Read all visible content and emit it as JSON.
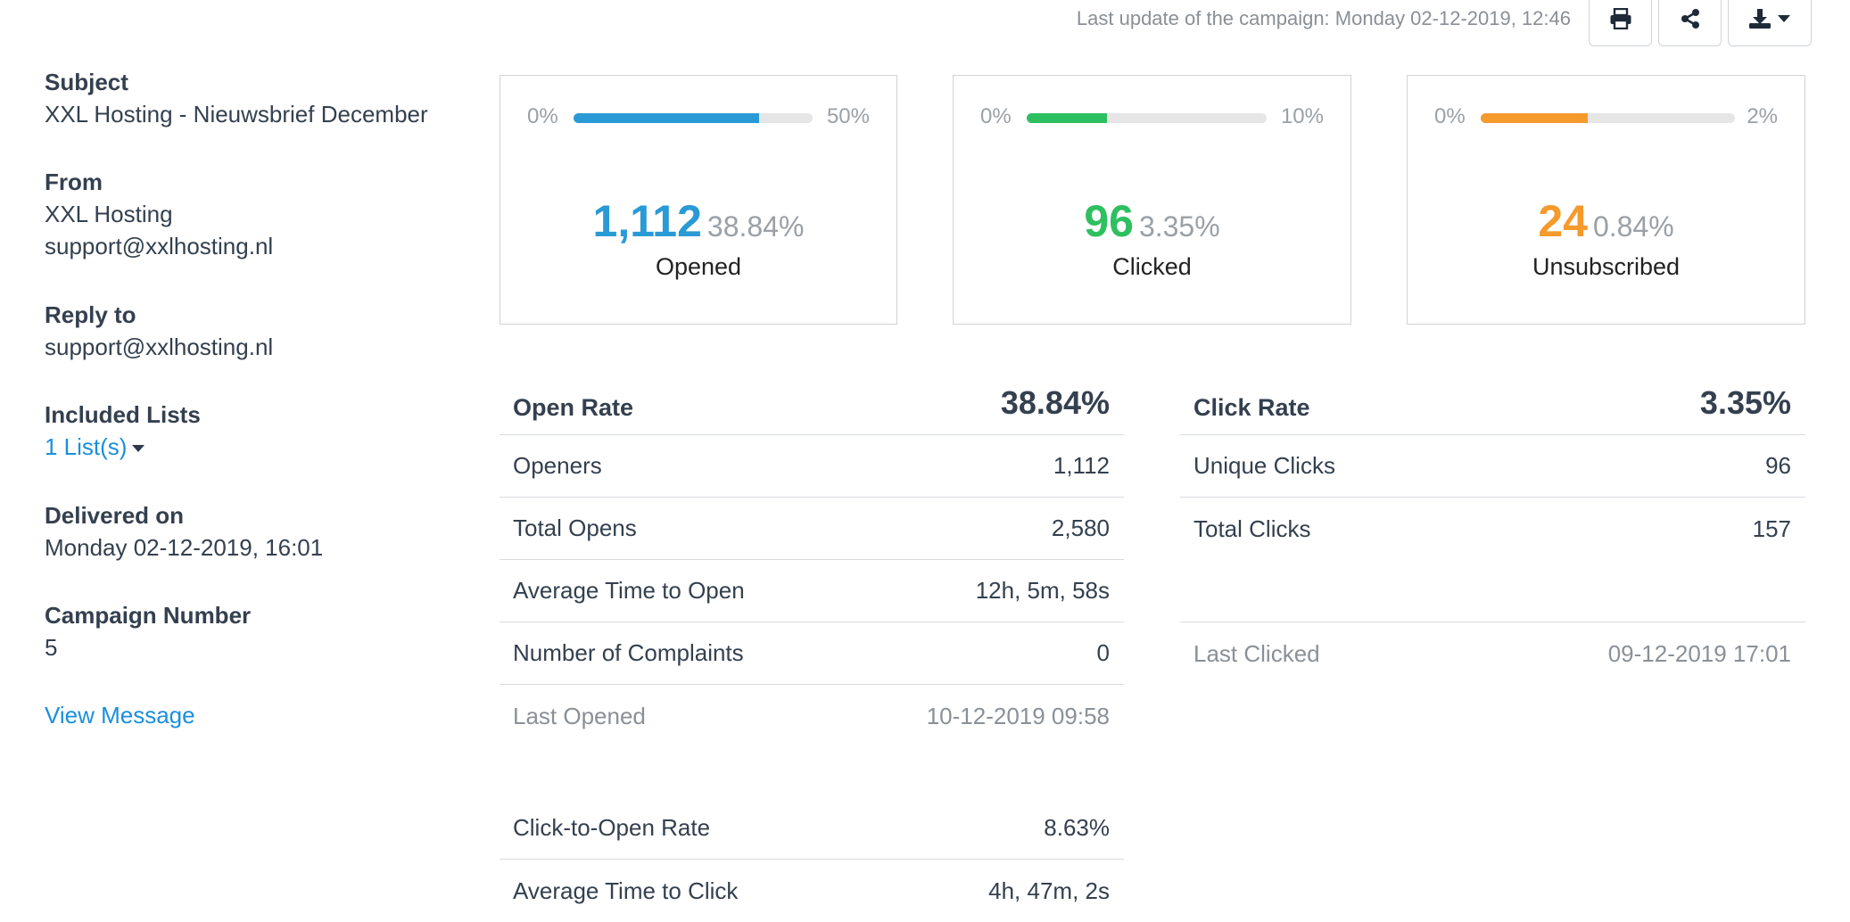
{
  "topbar": {
    "last_update_label": "Last update of the campaign:",
    "last_update_value": "Monday 02-12-2019, 12:46",
    "icons": [
      "printer-icon",
      "share-icon",
      "download-icon",
      "chevron-down-icon"
    ]
  },
  "sidebar": {
    "subject_label": "Subject",
    "subject_value": "XXL Hosting - Nieuwsbrief December",
    "from_label": "From",
    "from_name": "XXL Hosting",
    "from_email": "support@xxlhosting.nl",
    "reply_label": "Reply to",
    "reply_email": "support@xxlhosting.nl",
    "lists_label": "Included Lists",
    "lists_value": "1 List(s)",
    "delivered_label": "Delivered on",
    "delivered_value": "Monday 02-12-2019, 16:01",
    "campaign_number_label": "Campaign Number",
    "campaign_number_value": "5",
    "view_message_label": "View Message"
  },
  "cards": {
    "opened": {
      "min": "0%",
      "max": "50%",
      "fill_fraction": 0.777,
      "count": "1,112",
      "percent": "38.84%",
      "label": "Opened",
      "color": "#2a9ad6"
    },
    "clicked": {
      "min": "0%",
      "max": "10%",
      "fill_fraction": 0.335,
      "count": "96",
      "percent": "3.35%",
      "label": "Clicked",
      "color": "#2ec060"
    },
    "unsubscribed": {
      "min": "0%",
      "max": "2%",
      "fill_fraction": 0.42,
      "count": "24",
      "percent": "0.84%",
      "label": "Unsubscribed",
      "color": "#f59a2c"
    }
  },
  "open_stats": {
    "header_label": "Open Rate",
    "header_value": "38.84%",
    "rows": [
      {
        "label": "Openers",
        "value": "1,112"
      },
      {
        "label": "Total Opens",
        "value": "2,580"
      },
      {
        "label": "Average Time to Open",
        "value": "12h, 5m, 58s"
      },
      {
        "label": "Number of Complaints",
        "value": "0"
      },
      {
        "label": "Last Opened",
        "value": "10-12-2019 09:58"
      }
    ],
    "extra_rows": [
      {
        "label": "Click-to-Open Rate",
        "value": "8.63%"
      },
      {
        "label": "Average Time to Click",
        "value": "4h, 47m, 2s"
      }
    ]
  },
  "click_stats": {
    "header_label": "Click Rate",
    "header_value": "3.35%",
    "rows": [
      {
        "label": "Unique Clicks",
        "value": "96"
      },
      {
        "label": "Total Clicks",
        "value": "157"
      }
    ],
    "last_row": {
      "label": "Last Clicked",
      "value": "09-12-2019 17:01"
    }
  }
}
